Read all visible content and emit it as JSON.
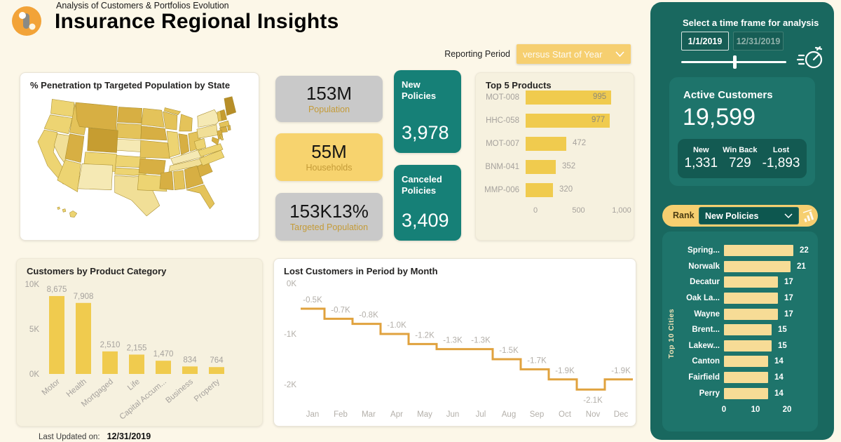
{
  "colors": {
    "bar_yellow": "#F0CB4E",
    "pale_bar": "#F7DC96",
    "teal_sidebar": "#19685F",
    "teal_card": "#1E746B",
    "teal_dark": "#135A52",
    "teal_policy": "#168077",
    "orange_line": "#E0A23E",
    "gold_label": "#C49B38",
    "axis_gray": "#A6A29D",
    "map_palette": [
      "#f5e9b4",
      "#f1df97",
      "#edd472",
      "#e4c35a",
      "#d7af43",
      "#c69d31",
      "#b78e28"
    ]
  },
  "header": {
    "subtitle": "Analysis of Customers & Portfolios Evolution",
    "title": "Insurance Regional Insights",
    "reporting_period_label": "Reporting Period",
    "reporting_period_value": "versus Start of Year"
  },
  "footer": {
    "last_updated_label": "Last Updated on:",
    "last_updated_value": "12/31/2019"
  },
  "kpis": [
    {
      "value": "153M",
      "label": "Population"
    },
    {
      "value": "55M",
      "label": "Households"
    },
    {
      "value": "153K13%",
      "label": "Targeted Population"
    }
  ],
  "policy_cards": [
    {
      "label": "New Policies",
      "value": "3,978"
    },
    {
      "label": "Canceled Policies",
      "value": "3,409"
    }
  ],
  "sidebar": {
    "timeframe_label": "Select a time frame for analysis",
    "date_start": "1/1/2019",
    "date_end": "12/31/2019",
    "active_customers_label": "Active Customers",
    "active_customers_value": "19,599",
    "stats": [
      {
        "label": "New",
        "value": "1,331"
      },
      {
        "label": "Win Back",
        "value": "729"
      },
      {
        "label": "Lost",
        "value": "-1,893"
      }
    ],
    "rank_label": "Rank",
    "rank_value": "New Policies"
  },
  "chart_data": [
    {
      "id": "penetration_map",
      "type": "heatmap",
      "subtype": "us-choropleth",
      "title": "% Penetration tp Targeted Population by State",
      "note": "shade rank per state, 1=lightest 7=darkest as rendered",
      "states": {
        "WA": 3,
        "OR": 3,
        "CA": 3,
        "NV": 2,
        "ID": 4,
        "MT": 5,
        "ND": 5,
        "SD": 4,
        "NE": 1,
        "WY": 6,
        "UT": 5,
        "CO": 3,
        "AZ": 3,
        "NM": 1,
        "KS": 3,
        "OK": 3,
        "TX": 2,
        "MN": 4,
        "IA": 5,
        "MO": 4,
        "AR": 5,
        "LA": 3,
        "WI": 4,
        "IL": 3,
        "MI": 4,
        "MI2": 4,
        "IN": 5,
        "OH": 4,
        "KY": 1,
        "TN": 2,
        "MS": 5,
        "AL": 4,
        "GA": 5,
        "FL": 4,
        "SC": 5,
        "NC": 3,
        "VA": 3,
        "WV": 3,
        "PA": 2,
        "NY": 1,
        "ME": 7,
        "NH": 6,
        "VT": 4,
        "MA": 4,
        "CT": 5,
        "RI": 5,
        "NJ": 5,
        "MD": 5,
        "DE": 4,
        "HI": 3,
        "HI2": 3,
        "HI3": 3
      }
    },
    {
      "id": "top5_products",
      "type": "bar",
      "orientation": "horizontal",
      "title": "Top 5 Products",
      "categories": [
        "MOT-008",
        "HHC-058",
        "MOT-007",
        "BNM-041",
        "MMP-006"
      ],
      "values": [
        995,
        977,
        472,
        352,
        320
      ],
      "xlim": [
        0,
        1000
      ],
      "xticks": [
        {
          "label": "0",
          "value": 0
        },
        {
          "label": "500",
          "value": 500
        },
        {
          "label": "1,000",
          "value": 1000
        }
      ]
    },
    {
      "id": "customers_by_category",
      "type": "bar",
      "title": "Customers by Product Category",
      "categories": [
        "Motor",
        "Health",
        "Mortgaged",
        "Life",
        "Capital Accum...",
        "Business",
        "Property"
      ],
      "values": [
        8675,
        7908,
        2510,
        2155,
        1470,
        834,
        764
      ],
      "value_labels": [
        "8,675",
        "7,908",
        "2,510",
        "2,155",
        "1,470",
        "834",
        "764"
      ],
      "ylim": [
        0,
        10000
      ],
      "yticks": [
        {
          "label": "10K",
          "value": 10000
        },
        {
          "label": "5K",
          "value": 5000
        },
        {
          "label": "0K",
          "value": 0
        }
      ]
    },
    {
      "id": "lost_customers",
      "type": "line",
      "subtype": "step",
      "title": "Lost Customers in Period by Month",
      "categories": [
        "Jan",
        "Feb",
        "Mar",
        "Apr",
        "May",
        "Jun",
        "Jul",
        "Aug",
        "Sep",
        "Oct",
        "Nov",
        "Dec"
      ],
      "values": [
        -500,
        -700,
        -800,
        -1000,
        -1200,
        -1300,
        -1300,
        -1500,
        -1700,
        -1900,
        -2100,
        -1900
      ],
      "value_labels": [
        "-0.5K",
        "-0.7K",
        "-0.8K",
        "-1.0K",
        "-1.2K",
        "-1.3K",
        "-1.3K",
        "-1.5K",
        "-1.7K",
        "-1.9K",
        "-2.1K",
        "-1.9K"
      ],
      "ylim": [
        -2400,
        0
      ],
      "yticks": [
        {
          "label": "0K",
          "value": 0
        },
        {
          "label": "-1K",
          "value": -1000
        },
        {
          "label": "-2K",
          "value": -2000
        }
      ]
    },
    {
      "id": "top10_cities",
      "type": "bar",
      "orientation": "horizontal",
      "axis_label": "Top 10 Cities",
      "categories": [
        "Spring...",
        "Norwalk",
        "Decatur",
        "Oak La...",
        "Wayne",
        "Brent...",
        "Lakew...",
        "Canton",
        "Fairfield",
        "Perry"
      ],
      "values": [
        22,
        21,
        17,
        17,
        17,
        15,
        15,
        14,
        14,
        14
      ],
      "xlim": [
        0,
        22
      ],
      "xticks": [
        {
          "label": "0",
          "value": 0
        },
        {
          "label": "10",
          "value": 10
        },
        {
          "label": "20",
          "value": 20
        }
      ]
    }
  ]
}
